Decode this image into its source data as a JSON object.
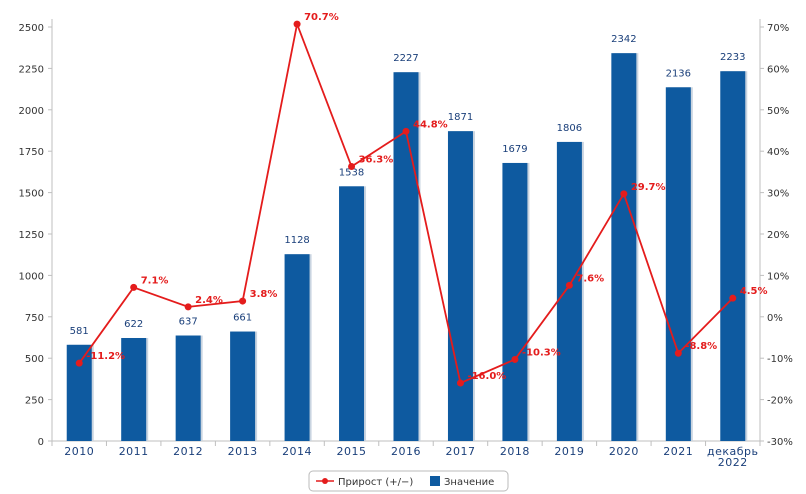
{
  "chart_data": {
    "type": "bar",
    "categories": [
      "2010",
      "2011",
      "2012",
      "2013",
      "2014",
      "2015",
      "2016",
      "2017",
      "2018",
      "2019",
      "2020",
      "2021",
      "декабрь 2022"
    ],
    "category_lines": [
      [
        "2010"
      ],
      [
        "2011"
      ],
      [
        "2012"
      ],
      [
        "2013"
      ],
      [
        "2014"
      ],
      [
        "2015"
      ],
      [
        "2016"
      ],
      [
        "2017"
      ],
      [
        "2018"
      ],
      [
        "2019"
      ],
      [
        "2020"
      ],
      [
        "2021"
      ],
      [
        "декабрь",
        "2022"
      ]
    ],
    "series": [
      {
        "name": "Значение",
        "kind": "bar",
        "axis": "left",
        "color": "#0e5aa0",
        "values": [
          581,
          622,
          637,
          661,
          1128,
          1538,
          2227,
          1871,
          1679,
          1806,
          2342,
          2136,
          2233
        ],
        "labels": [
          "581",
          "622",
          "637",
          "661",
          "1128",
          "1538",
          "2227",
          "1871",
          "1679",
          "1806",
          "2342",
          "2136",
          "2233"
        ]
      },
      {
        "name": "Прирост (+/−)",
        "kind": "line",
        "axis": "right",
        "color": "#e41c1c",
        "values": [
          -11.2,
          7.1,
          2.4,
          3.8,
          70.7,
          36.3,
          44.8,
          -16.0,
          -10.3,
          7.6,
          29.7,
          -8.8,
          4.5
        ],
        "labels": [
          "-11.2%",
          "7.1%",
          "2.4%",
          "3.8%",
          "70.7%",
          "36.3%",
          "44.8%",
          "-16.0%",
          "-10.3%",
          "7.6%",
          "29.7%",
          "-8.8%",
          "4.5%"
        ]
      }
    ],
    "y_left": {
      "min": 0,
      "max": 2500,
      "ticks": [
        0,
        250,
        500,
        750,
        1000,
        1250,
        1500,
        1750,
        2000,
        2250,
        2500
      ]
    },
    "y_right": {
      "min": -30,
      "max": 70,
      "ticks": [
        -30,
        -20,
        -10,
        0,
        10,
        20,
        30,
        40,
        50,
        60,
        70
      ],
      "tick_labels": [
        "-30%",
        "-20%",
        "-10%",
        "0%",
        "10%",
        "20%",
        "30%",
        "40%",
        "50%",
        "60%",
        "70%"
      ]
    },
    "legend": {
      "position": "bottom-center",
      "items": [
        "Прирост (+/−)",
        "Значение"
      ]
    },
    "grid": false,
    "title": ""
  }
}
